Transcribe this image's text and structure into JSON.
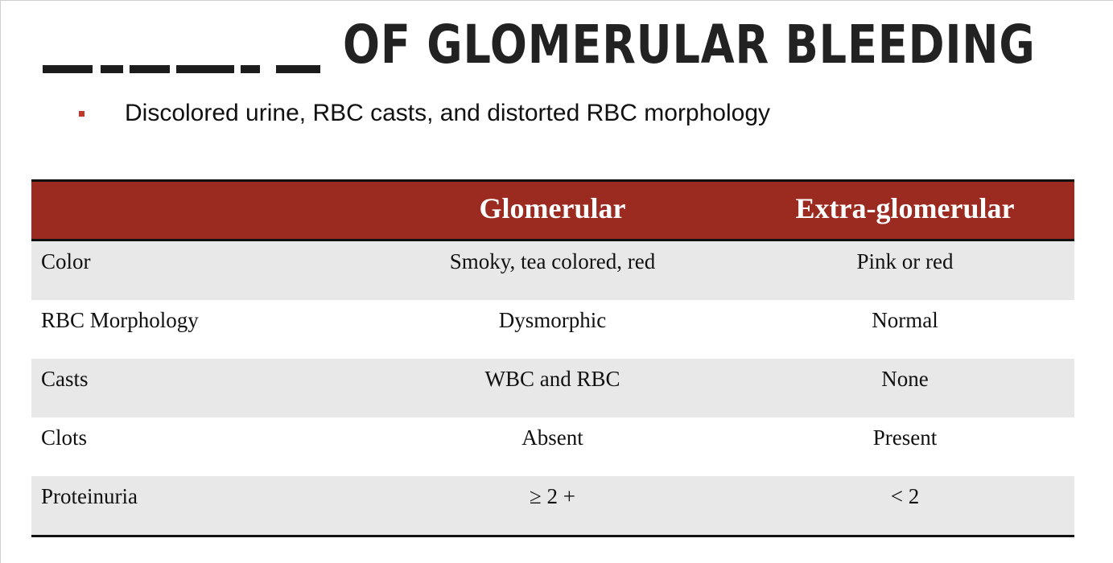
{
  "slide": {
    "title": "OF GLOMERULAR BLEEDING",
    "bullet": "Discolored urine, RBC casts, and distorted RBC morphology",
    "colors": {
      "accent": "#9b2b21",
      "bullet": "#c0392b",
      "row_shade": "#e8e8e8"
    }
  },
  "table": {
    "columns": [
      "",
      "Glomerular",
      "Extra-glomerular"
    ],
    "rows": [
      [
        "Color",
        "Smoky, tea colored, red",
        "Pink or red"
      ],
      [
        "RBC Morphology",
        "Dysmorphic",
        "Normal"
      ],
      [
        "Casts",
        "WBC and RBC",
        "None"
      ],
      [
        "Clots",
        "Absent",
        "Present"
      ],
      [
        "Proteinuria",
        "≥ 2 +",
        "< 2"
      ]
    ]
  }
}
